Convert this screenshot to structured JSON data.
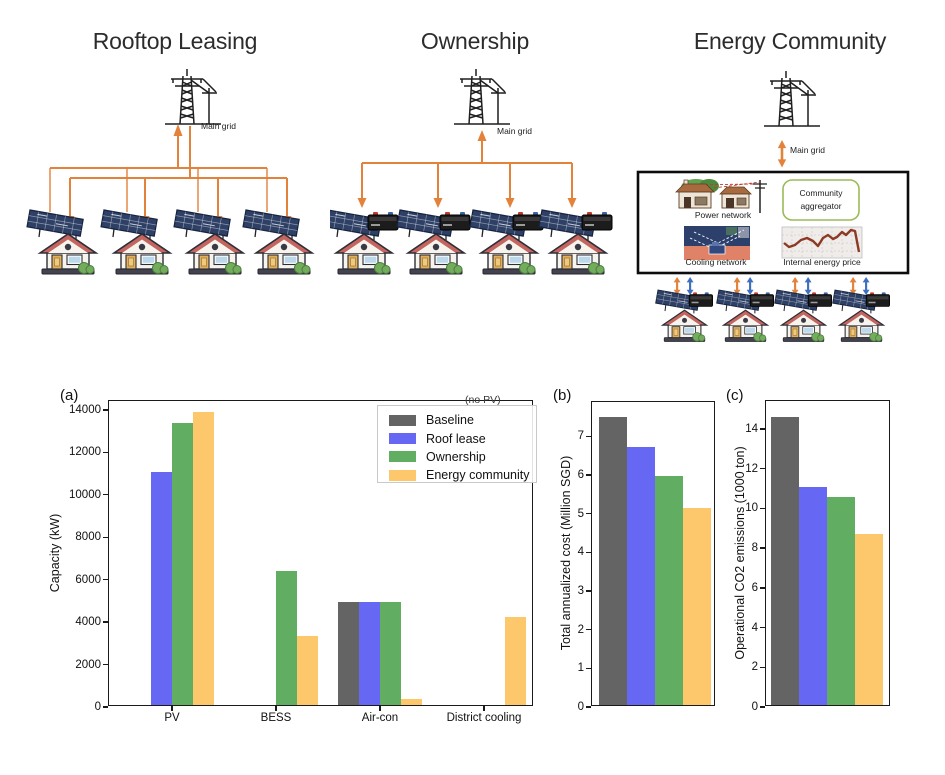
{
  "diagrams": {
    "roof_lease": {
      "title": "Rooftop Leasing",
      "grid_label": "Main grid"
    },
    "ownership": {
      "title": "Ownership",
      "grid_label": "Main grid"
    },
    "energy_community": {
      "title": "Energy Community",
      "grid_label": "Main grid",
      "power_network_label": "Power network",
      "aggregator_line1": "Community",
      "aggregator_line2": "aggregator",
      "cooling_network_label": "Cooling network",
      "price_label": "Internal energy price"
    }
  },
  "colors": {
    "baseline": "#646464",
    "roof_lease": "#6667F2",
    "ownership": "#61AE63",
    "energy_community": "#FDC76B",
    "power_arrow_orange": "#E2823B",
    "cooling_arrow_blue": "#3E6FBE",
    "aggregator_border_green": "#9BBB59",
    "price_line_dark_red": "#8C3A24"
  },
  "chart_data": [
    {
      "type": "bar",
      "panel_label": "(a)",
      "ylabel": "Capacity (kW)",
      "categories": [
        "PV",
        "BESS",
        "Air-con",
        "District cooling"
      ],
      "series": [
        {
          "name": "Baseline",
          "color": "#646464",
          "values": [
            0,
            0,
            4850,
            0
          ]
        },
        {
          "name": "Roof lease",
          "color": "#6667F2",
          "values": [
            11000,
            0,
            4850,
            0
          ]
        },
        {
          "name": "Ownership",
          "color": "#61AE63",
          "values": [
            13300,
            6300,
            4850,
            0
          ]
        },
        {
          "name": "Energy community",
          "color": "#FDC76B",
          "values": [
            13800,
            3250,
            300,
            4150
          ]
        }
      ],
      "yticks": [
        0,
        2000,
        4000,
        6000,
        8000,
        10000,
        12000,
        14000
      ],
      "ylim": [
        0,
        14420
      ],
      "annotation": "(no PV)",
      "legend": [
        "Baseline",
        "Roof lease",
        "Ownership",
        "Energy community"
      ],
      "legend_position": "upper right",
      "grid": false
    },
    {
      "type": "bar",
      "panel_label": "(b)",
      "ylabel": "Total annualized cost (Million SGD)",
      "series": [
        {
          "name": "Baseline",
          "color": "#646464",
          "value": 7.45
        },
        {
          "name": "Roof lease",
          "color": "#6667F2",
          "value": 6.68
        },
        {
          "name": "Ownership",
          "color": "#61AE63",
          "value": 5.93
        },
        {
          "name": "Energy community",
          "color": "#FDC76B",
          "value": 5.1
        }
      ],
      "yticks": [
        0,
        1,
        2,
        3,
        4,
        5,
        6,
        7
      ],
      "ylim": [
        0,
        7.89
      ],
      "grid": false
    },
    {
      "type": "bar",
      "panel_label": "(c)",
      "ylabel": "Operational CO2 emissions (1000 ton)",
      "series": [
        {
          "name": "Baseline",
          "color": "#646464",
          "value": 14.5
        },
        {
          "name": "Roof lease",
          "color": "#6667F2",
          "value": 11.0
        },
        {
          "name": "Ownership",
          "color": "#61AE63",
          "value": 10.5
        },
        {
          "name": "Energy community",
          "color": "#FDC76B",
          "value": 8.6
        }
      ],
      "yticks": [
        0,
        2,
        4,
        6,
        8,
        10,
        12,
        14
      ],
      "ylim": [
        0,
        15.41
      ],
      "grid": false
    }
  ]
}
